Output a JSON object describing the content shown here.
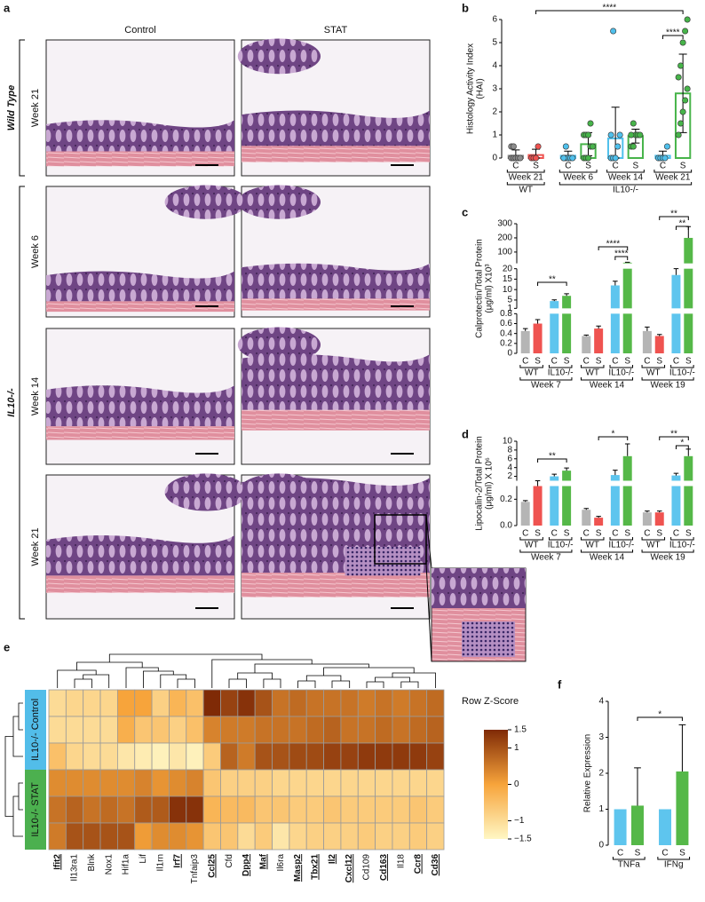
{
  "histology": {
    "label": "a",
    "columns": [
      "Control",
      "STAT"
    ],
    "row_groups": [
      {
        "label": "Wild Type",
        "rows": [
          "Week 21"
        ]
      },
      {
        "label": "IL10-/-",
        "rows": [
          "Week 6",
          "Week 14",
          "Week 21"
        ]
      }
    ]
  },
  "chart_data": [
    {
      "type": "bar",
      "panel_label": "b",
      "ylabel": [
        "Histology Activity Index",
        "(HAI)"
      ],
      "ylim": [
        0,
        6
      ],
      "yticks": [
        0,
        1,
        2,
        3,
        4,
        5,
        6
      ],
      "filled": false,
      "error_direction": "both",
      "groups": [
        {
          "label": "WT",
          "subgroups": [
            {
              "label": "Week 21",
              "bars": [
                {
                  "label": "C",
                  "value": 0.1,
                  "error": 0.25,
                  "color": "#8c8c8c",
                  "points": [
                    0,
                    0,
                    0,
                    0,
                    0,
                    0.5,
                    0.5
                  ]
                },
                {
                  "label": "S",
                  "value": 0.13,
                  "error": 0.25,
                  "color": "#ef5350",
                  "points": [
                    0,
                    0,
                    0,
                    0.5
                  ]
                }
              ]
            }
          ]
        },
        {
          "label": "IL10-/-",
          "subgroups": [
            {
              "label": "Week 6",
              "bars": [
                {
                  "label": "C",
                  "value": 0.1,
                  "error": 0.2,
                  "color": "#4fc0ec",
                  "points": [
                    0,
                    0,
                    0,
                    0,
                    0,
                    0,
                    0.5
                  ]
                },
                {
                  "label": "S",
                  "value": 0.6,
                  "error": 0.5,
                  "color": "#47b44a",
                  "points": [
                    0,
                    0,
                    0,
                    0.5,
                    0.5,
                    1,
                    1,
                    1,
                    1.5
                  ]
                }
              ]
            },
            {
              "label": "Week 14",
              "bars": [
                {
                  "label": "C",
                  "value": 0.85,
                  "error": 1.35,
                  "color": "#4fc0ec",
                  "points": [
                    0,
                    0,
                    0,
                    0.5,
                    1,
                    1,
                    5.5
                  ]
                },
                {
                  "label": "S",
                  "value": 0.95,
                  "error": 0.3,
                  "color": "#47b44a",
                  "points": [
                    0.5,
                    0.5,
                    1,
                    1,
                    1,
                    1,
                    1.5
                  ]
                }
              ]
            },
            {
              "label": "Week 21",
              "bars": [
                {
                  "label": "C",
                  "value": 0.1,
                  "error": 0.2,
                  "color": "#4fc0ec",
                  "points": [
                    0,
                    0,
                    0,
                    0,
                    0.5
                  ]
                },
                {
                  "label": "S",
                  "value": 2.8,
                  "error": 1.7,
                  "color": "#47b44a",
                  "points": [
                    1,
                    1.5,
                    2,
                    2.5,
                    3,
                    3.5,
                    4,
                    5,
                    5.5,
                    6
                  ]
                }
              ]
            }
          ]
        }
      ],
      "significance": [
        "****",
        "****"
      ]
    },
    {
      "type": "bar",
      "panel_label": "c",
      "ylabel": [
        "Calprotectin/Total Protein",
        "(μg/ml) X10³"
      ],
      "ylim": [
        0,
        300
      ],
      "axis_breaks": [
        [
          0.8,
          1
        ],
        [
          20,
          20
        ]
      ],
      "yticks": [
        0,
        0.2,
        0.4,
        0.6,
        0.8,
        1,
        5,
        10,
        15,
        20,
        100,
        200,
        300
      ],
      "filled": true,
      "error_direction": "up",
      "groups": [
        {
          "label": "Week 7",
          "subgroups": [
            {
              "label": "WT",
              "bars": [
                {
                  "label": "C",
                  "value": 0.45,
                  "error": 0.05,
                  "color": "#b5b5b5"
                },
                {
                  "label": "S",
                  "value": 0.6,
                  "error": 0.08,
                  "color": "#ef5350"
                }
              ]
            },
            {
              "label": "IL10-/-",
              "bars": [
                {
                  "label": "C",
                  "value": 4.5,
                  "error": 0.6,
                  "color": "#5ec5ee"
                },
                {
                  "label": "S",
                  "value": 7,
                  "error": 1,
                  "color": "#55b848"
                }
              ]
            }
          ]
        },
        {
          "label": "Week 14",
          "subgroups": [
            {
              "label": "WT",
              "bars": [
                {
                  "label": "C",
                  "value": 0.35,
                  "error": 0.02,
                  "color": "#b5b5b5"
                },
                {
                  "label": "S",
                  "value": 0.5,
                  "error": 0.05,
                  "color": "#ef5350"
                }
              ]
            },
            {
              "label": "IL10-/-",
              "bars": [
                {
                  "label": "C",
                  "value": 12,
                  "error": 2,
                  "color": "#5ec5ee"
                },
                {
                  "label": "S",
                  "value": 25,
                  "error": 3,
                  "color": "#55b848"
                }
              ]
            }
          ]
        },
        {
          "label": "Week 19",
          "subgroups": [
            {
              "label": "WT",
              "bars": [
                {
                  "label": "C",
                  "value": 0.45,
                  "error": 0.08,
                  "color": "#b5b5b5"
                },
                {
                  "label": "S",
                  "value": 0.35,
                  "error": 0.03,
                  "color": "#ef5350"
                }
              ]
            },
            {
              "label": "IL10-/-",
              "bars": [
                {
                  "label": "C",
                  "value": 17,
                  "error": 3,
                  "color": "#5ec5ee"
                },
                {
                  "label": "S",
                  "value": 200,
                  "error": 80,
                  "color": "#55b848"
                }
              ]
            }
          ]
        }
      ],
      "significance": [
        "**",
        "****",
        "****",
        "**",
        "**"
      ]
    },
    {
      "type": "bar",
      "panel_label": "d",
      "ylabel": [
        "Lipocalin-2/Total Protein",
        "(μg/ml) X 10⁶"
      ],
      "ylim": [
        0,
        10
      ],
      "axis_breaks": [
        [
          0.3,
          1
        ]
      ],
      "yticks": [
        {
          "value": 0,
          "label": "0.0"
        },
        0.2,
        2,
        4,
        6,
        8,
        10
      ],
      "filled": true,
      "error_direction": "up",
      "groups": [
        {
          "label": "Week 7",
          "subgroups": [
            {
              "label": "WT",
              "bars": [
                {
                  "label": "C",
                  "value": 0.18,
                  "error": 0.01,
                  "color": "#b5b5b5"
                },
                {
                  "label": "S",
                  "value": 0.3,
                  "error": 0.15,
                  "color": "#ef5350"
                }
              ]
            },
            {
              "label": "IL10-/-",
              "bars": [
                {
                  "label": "C",
                  "value": 2,
                  "error": 0.5,
                  "color": "#5ec5ee"
                },
                {
                  "label": "S",
                  "value": 3.3,
                  "error": 0.6,
                  "color": "#55b848"
                }
              ]
            }
          ]
        },
        {
          "label": "Week 14",
          "subgroups": [
            {
              "label": "WT",
              "bars": [
                {
                  "label": "C",
                  "value": 0.12,
                  "error": 0.01,
                  "color": "#b5b5b5"
                },
                {
                  "label": "S",
                  "value": 0.06,
                  "error": 0.01,
                  "color": "#ef5350"
                }
              ]
            },
            {
              "label": "IL10-/-",
              "bars": [
                {
                  "label": "C",
                  "value": 2.3,
                  "error": 1.1,
                  "color": "#5ec5ee"
                },
                {
                  "label": "S",
                  "value": 6.6,
                  "error": 2.8,
                  "color": "#55b848"
                }
              ]
            }
          ]
        },
        {
          "label": "Week 19",
          "subgroups": [
            {
              "label": "WT",
              "bars": [
                {
                  "label": "C",
                  "value": 0.1,
                  "error": 0.01,
                  "color": "#b5b5b5"
                },
                {
                  "label": "S",
                  "value": 0.1,
                  "error": 0.01,
                  "color": "#ef5350"
                }
              ]
            },
            {
              "label": "IL10-/-",
              "bars": [
                {
                  "label": "C",
                  "value": 2.2,
                  "error": 0.5,
                  "color": "#5ec5ee"
                },
                {
                  "label": "S",
                  "value": 6.6,
                  "error": 1.6,
                  "color": "#55b848"
                }
              ]
            }
          ]
        }
      ],
      "significance": [
        "**",
        "*",
        "**",
        "*"
      ]
    },
    {
      "type": "heatmap",
      "panel_label": "e",
      "legend_title": "Row Z-Score",
      "zlim": [
        -1.5,
        1.5
      ],
      "colors": [
        "#fff7c4",
        "#f7a43b",
        "#7f2a06"
      ],
      "legend_ticks": [
        1.5,
        1,
        0,
        {
          "value": -1,
          "label": "−1"
        },
        {
          "value": -1.5,
          "label": "−1.5"
        }
      ],
      "columns": [
        {
          "label": "Ifit2",
          "emphasized": true
        },
        {
          "label": "Il13ra1",
          "emphasized": false
        },
        {
          "label": "Blnk",
          "emphasized": false
        },
        {
          "label": "Nox1",
          "emphasized": false
        },
        {
          "label": "Hif1a",
          "emphasized": false
        },
        {
          "label": "Lif",
          "emphasized": false
        },
        {
          "label": "Il1rn",
          "emphasized": false
        },
        {
          "label": "Irf7",
          "emphasized": true
        },
        {
          "label": "Tnfaip3",
          "emphasized": false
        },
        {
          "label": "Ccl25",
          "emphasized": true
        },
        {
          "label": "Cfd",
          "emphasized": false
        },
        {
          "label": "Dpp4",
          "emphasized": true
        },
        {
          "label": "Maf",
          "emphasized": true
        },
        {
          "label": "Il6ra",
          "emphasized": false
        },
        {
          "label": "Masp2",
          "emphasized": true
        },
        {
          "label": "Tbx21",
          "emphasized": true
        },
        {
          "label": "Il2",
          "emphasized": true
        },
        {
          "label": "Cxcl12",
          "emphasized": true
        },
        {
          "label": "Cd109",
          "emphasized": false
        },
        {
          "label": "Cd163",
          "emphasized": true
        },
        {
          "label": "Il18",
          "emphasized": false
        },
        {
          "label": "Ccr8",
          "emphasized": true
        },
        {
          "label": "Cd36",
          "emphasized": true
        }
      ],
      "row_groups": [
        {
          "label": "IL10-/- Control",
          "color": "#52bde9",
          "rows": [
            [
              -1,
              -0.9,
              -0.9,
              -0.9,
              0,
              0,
              -0.8,
              -0.3,
              -0.5,
              1.5,
              1.2,
              1.4,
              1,
              0.6,
              0.7,
              0.6,
              0.6,
              0.6,
              0.5,
              0.6,
              0.5,
              0.6,
              0.7
            ],
            [
              -1,
              -1,
              -1,
              -1,
              -0.2,
              -0.6,
              -0.6,
              -0.8,
              -0.5,
              0.4,
              0.5,
              0.5,
              0.6,
              0.6,
              0.6,
              0.7,
              0.8,
              0.6,
              0.6,
              0.7,
              0.6,
              0.7,
              0.8
            ],
            [
              -0.5,
              -0.9,
              -1,
              -1,
              -1.2,
              -1.3,
              -1.4,
              -1.2,
              -1.4,
              -0.7,
              0.8,
              0.5,
              1,
              1,
              1.1,
              1.1,
              1.2,
              1.2,
              1.3,
              1.3,
              1.3,
              1.3,
              1.2
            ]
          ]
        },
        {
          "label": "IL10-/- STAT",
          "color": "#4cb04f",
          "rows": [
            [
              0.3,
              0.3,
              0.3,
              0.3,
              0.3,
              0.4,
              0.2,
              0.3,
              0.4,
              -0.6,
              -0.8,
              -0.8,
              -0.8,
              -0.9,
              -0.9,
              -0.9,
              -0.9,
              -0.9,
              -0.9,
              -0.9,
              -0.9,
              -0.9,
              -0.9
            ],
            [
              0.6,
              0.8,
              0.6,
              0.7,
              0.6,
              0.9,
              0.9,
              1.4,
              1.4,
              -0.3,
              -0.4,
              -0.4,
              -0.6,
              -0.6,
              -0.7,
              -0.7,
              -0.6,
              -0.7,
              -0.7,
              -0.7,
              -0.7,
              -0.6,
              -0.7
            ],
            [
              0.5,
              1,
              1,
              1,
              1,
              0.1,
              0.3,
              0.3,
              0.2,
              -0.6,
              -0.6,
              -1,
              -0.7,
              -1.2,
              -0.9,
              -0.8,
              -0.8,
              -0.8,
              -0.7,
              -0.8,
              -0.8,
              -0.7,
              -0.8
            ]
          ]
        }
      ]
    },
    {
      "type": "bar",
      "panel_label": "f",
      "ylabel": [
        "Relative Expression"
      ],
      "ylim": [
        0,
        4
      ],
      "yticks": [
        0,
        1,
        2,
        3,
        4
      ],
      "filled": true,
      "error_direction": "up",
      "groups": [
        {
          "label": "TNFa",
          "bars": [
            {
              "label": "C",
              "value": 1,
              "color": "#5ec5ee"
            },
            {
              "label": "S",
              "value": 1.1,
              "error": 1.05,
              "color": "#55b848"
            }
          ]
        },
        {
          "label": "IFNg",
          "bars": [
            {
              "label": "C",
              "value": 1,
              "color": "#5ec5ee"
            },
            {
              "label": "S",
              "value": 2.05,
              "error": 1.3,
              "color": "#55b848"
            }
          ]
        }
      ],
      "significance": [
        "*"
      ]
    }
  ]
}
